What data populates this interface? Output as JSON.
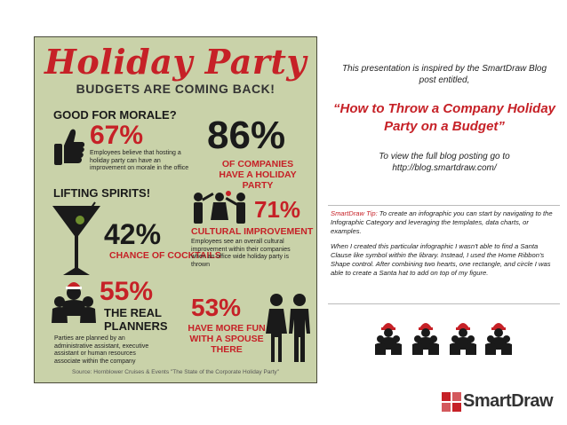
{
  "infographic": {
    "title": "Holiday Party",
    "subtitle": "BUDGETS ARE COMING BACK!",
    "morale": {
      "heading": "GOOD FOR MORALE?",
      "percent": "67%",
      "description": "Employees believe that hosting a holiday party can have an improvement on morale in the office"
    },
    "companies": {
      "percent": "86%",
      "label": "OF COMPANIES HAVE A HOLIDAY PARTY"
    },
    "spirits": {
      "heading": "LIFTING SPIRITS!",
      "percent": "42%",
      "label": "CHANCE OF COCKTAILS"
    },
    "cultural": {
      "percent": "71%",
      "label": "CULTURAL IMPROVEMENT",
      "description": "Employees see an overall cultural improvement within their companies when an office wide holiday party is thrown"
    },
    "planners": {
      "percent": "55%",
      "label": "THE REAL PLANNERS",
      "description": "Parties are planned by an administrative assistant, executive assistant or human resources associate within the company"
    },
    "spouse": {
      "percent": "53%",
      "label": "HAVE MORE FUN WITH A SPOUSE THERE"
    },
    "source": "Source: Hornblower Cruises & Events \"The State of the Corporate Holiday Party\""
  },
  "intro_text": "This presentation is inspired by the SmartDraw Blog post entitled,",
  "quote": "“How to Throw a Company Holiday Party on a Budget”",
  "view_text": "To view the full blog posting go to http://blog.smartdraw.com/",
  "tip": {
    "label": "SmartDraw Tip:",
    "text": " To create an infographic you can start by navigating to the Infographic Category and leveraging the templates, data charts, or examples.",
    "paragraph2": "When I created this particular infographic I wasn't able to find a Santa Clause like symbol within the library.  Instead, I used the Home Ribbon's Shape control.  After combining two hearts, one rectangle, and circle I was able to create a Santa hat to add on top of my figure."
  },
  "brand": {
    "name": "SmartDraw"
  },
  "colors": {
    "accent_red": "#c62127",
    "panel_bg": "#c9d2a9",
    "text_dark": "#1a1a1a"
  }
}
